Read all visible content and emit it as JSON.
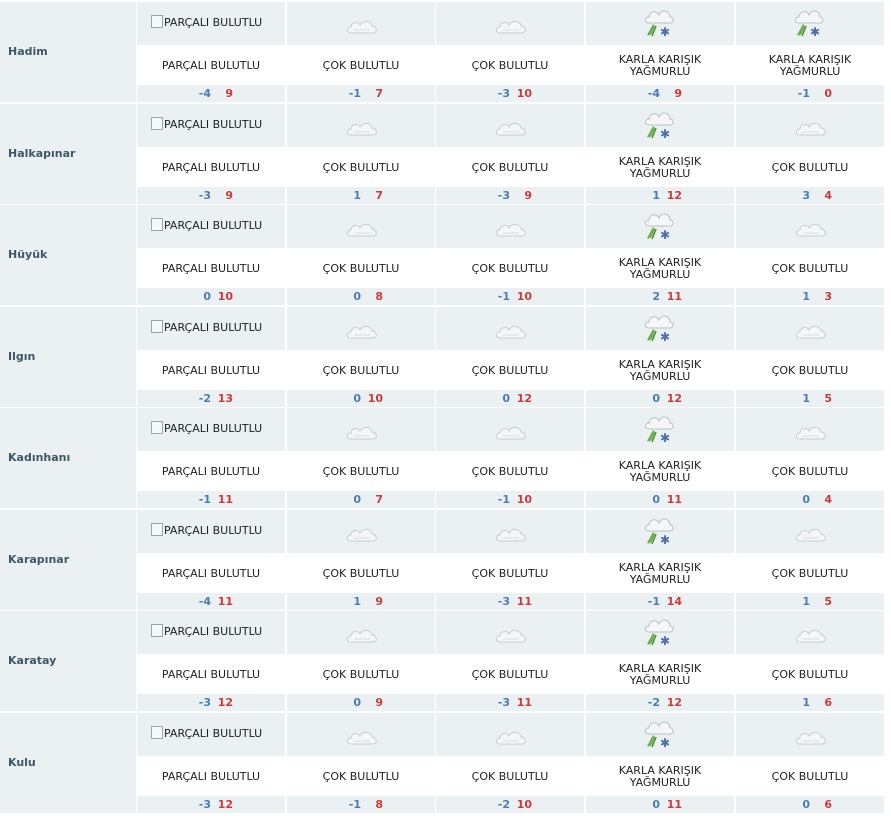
{
  "colors": {
    "band": "#ebf0f2",
    "city_text": "#3d5867",
    "min_temp": "#4a7db5",
    "max_temp": "#cc3a3a"
  },
  "cities": [
    {
      "name": "Hadim",
      "days": [
        {
          "icon": "broken-image-icon",
          "alt": "PARÇALI BULUTLU",
          "desc1": "PARÇALI BULUTLU",
          "desc2": "",
          "min": "-4",
          "max": "9"
        },
        {
          "icon": "cloud-icon",
          "desc1": "ÇOK BULUTLU",
          "desc2": "",
          "min": "-1",
          "max": "7"
        },
        {
          "icon": "cloud-icon",
          "desc1": "ÇOK BULUTLU",
          "desc2": "",
          "min": "-3",
          "max": "10"
        },
        {
          "icon": "sleet-icon",
          "desc1": "KARLA KARIŞIK",
          "desc2": "YAĞMURLU",
          "min": "-4",
          "max": "9"
        },
        {
          "icon": "sleet-icon",
          "desc1": "KARLA KARIŞIK",
          "desc2": "YAĞMURLU",
          "min": "-1",
          "max": "0"
        }
      ]
    },
    {
      "name": "Halkapınar",
      "days": [
        {
          "icon": "broken-image-icon",
          "alt": "PARÇALI BULUTLU",
          "desc1": "PARÇALI BULUTLU",
          "desc2": "",
          "min": "-3",
          "max": "9"
        },
        {
          "icon": "cloud-icon",
          "desc1": "ÇOK BULUTLU",
          "desc2": "",
          "min": "1",
          "max": "7"
        },
        {
          "icon": "cloud-icon",
          "desc1": "ÇOK BULUTLU",
          "desc2": "",
          "min": "-3",
          "max": "9"
        },
        {
          "icon": "sleet-icon",
          "desc1": "KARLA KARIŞIK",
          "desc2": "YAĞMURLU",
          "min": "1",
          "max": "12"
        },
        {
          "icon": "cloud-icon",
          "desc1": "ÇOK BULUTLU",
          "desc2": "",
          "min": "3",
          "max": "4"
        }
      ]
    },
    {
      "name": "Hüyük",
      "days": [
        {
          "icon": "broken-image-icon",
          "alt": "PARÇALI BULUTLU",
          "desc1": "PARÇALI BULUTLU",
          "desc2": "",
          "min": "0",
          "max": "10"
        },
        {
          "icon": "cloud-icon",
          "desc1": "ÇOK BULUTLU",
          "desc2": "",
          "min": "0",
          "max": "8"
        },
        {
          "icon": "cloud-icon",
          "desc1": "ÇOK BULUTLU",
          "desc2": "",
          "min": "-1",
          "max": "10"
        },
        {
          "icon": "sleet-icon",
          "desc1": "KARLA KARIŞIK",
          "desc2": "YAĞMURLU",
          "min": "2",
          "max": "11"
        },
        {
          "icon": "cloud-icon",
          "desc1": "ÇOK BULUTLU",
          "desc2": "",
          "min": "1",
          "max": "3"
        }
      ]
    },
    {
      "name": "Ilgın",
      "days": [
        {
          "icon": "broken-image-icon",
          "alt": "PARÇALI BULUTLU",
          "desc1": "PARÇALI BULUTLU",
          "desc2": "",
          "min": "-2",
          "max": "13"
        },
        {
          "icon": "cloud-icon",
          "desc1": "ÇOK BULUTLU",
          "desc2": "",
          "min": "0",
          "max": "10"
        },
        {
          "icon": "cloud-icon",
          "desc1": "ÇOK BULUTLU",
          "desc2": "",
          "min": "0",
          "max": "12"
        },
        {
          "icon": "sleet-icon",
          "desc1": "KARLA KARIŞIK",
          "desc2": "YAĞMURLU",
          "min": "0",
          "max": "12"
        },
        {
          "icon": "cloud-icon",
          "desc1": "ÇOK BULUTLU",
          "desc2": "",
          "min": "1",
          "max": "5"
        }
      ]
    },
    {
      "name": "Kadınhanı",
      "days": [
        {
          "icon": "broken-image-icon",
          "alt": "PARÇALI BULUTLU",
          "desc1": "PARÇALI BULUTLU",
          "desc2": "",
          "min": "-1",
          "max": "11"
        },
        {
          "icon": "cloud-icon",
          "desc1": "ÇOK BULUTLU",
          "desc2": "",
          "min": "0",
          "max": "7"
        },
        {
          "icon": "cloud-icon",
          "desc1": "ÇOK BULUTLU",
          "desc2": "",
          "min": "-1",
          "max": "10"
        },
        {
          "icon": "sleet-icon",
          "desc1": "KARLA KARIŞIK",
          "desc2": "YAĞMURLU",
          "min": "0",
          "max": "11"
        },
        {
          "icon": "cloud-icon",
          "desc1": "ÇOK BULUTLU",
          "desc2": "",
          "min": "0",
          "max": "4"
        }
      ]
    },
    {
      "name": "Karapınar",
      "days": [
        {
          "icon": "broken-image-icon",
          "alt": "PARÇALI BULUTLU",
          "desc1": "PARÇALI BULUTLU",
          "desc2": "",
          "min": "-4",
          "max": "11"
        },
        {
          "icon": "cloud-icon",
          "desc1": "ÇOK BULUTLU",
          "desc2": "",
          "min": "1",
          "max": "9"
        },
        {
          "icon": "cloud-icon",
          "desc1": "ÇOK BULUTLU",
          "desc2": "",
          "min": "-3",
          "max": "11"
        },
        {
          "icon": "sleet-icon",
          "desc1": "KARLA KARIŞIK",
          "desc2": "YAĞMURLU",
          "min": "-1",
          "max": "14"
        },
        {
          "icon": "cloud-icon",
          "desc1": "ÇOK BULUTLU",
          "desc2": "",
          "min": "1",
          "max": "5"
        }
      ]
    },
    {
      "name": "Karatay",
      "days": [
        {
          "icon": "broken-image-icon",
          "alt": "PARÇALI BULUTLU",
          "desc1": "PARÇALI BULUTLU",
          "desc2": "",
          "min": "-3",
          "max": "12"
        },
        {
          "icon": "cloud-icon",
          "desc1": "ÇOK BULUTLU",
          "desc2": "",
          "min": "0",
          "max": "9"
        },
        {
          "icon": "cloud-icon",
          "desc1": "ÇOK BULUTLU",
          "desc2": "",
          "min": "-3",
          "max": "11"
        },
        {
          "icon": "sleet-icon",
          "desc1": "KARLA KARIŞIK",
          "desc2": "YAĞMURLU",
          "min": "-2",
          "max": "12"
        },
        {
          "icon": "cloud-icon",
          "desc1": "ÇOK BULUTLU",
          "desc2": "",
          "min": "1",
          "max": "6"
        }
      ]
    },
    {
      "name": "Kulu",
      "days": [
        {
          "icon": "broken-image-icon",
          "alt": "PARÇALI BULUTLU",
          "desc1": "PARÇALI BULUTLU",
          "desc2": "",
          "min": "-3",
          "max": "12"
        },
        {
          "icon": "cloud-icon",
          "desc1": "ÇOK BULUTLU",
          "desc2": "",
          "min": "-1",
          "max": "8"
        },
        {
          "icon": "cloud-icon",
          "desc1": "ÇOK BULUTLU",
          "desc2": "",
          "min": "-2",
          "max": "10"
        },
        {
          "icon": "sleet-icon",
          "desc1": "KARLA KARIŞIK",
          "desc2": "YAĞMURLU",
          "min": "0",
          "max": "11"
        },
        {
          "icon": "cloud-icon",
          "desc1": "ÇOK BULUTLU",
          "desc2": "",
          "min": "0",
          "max": "6"
        }
      ]
    }
  ]
}
